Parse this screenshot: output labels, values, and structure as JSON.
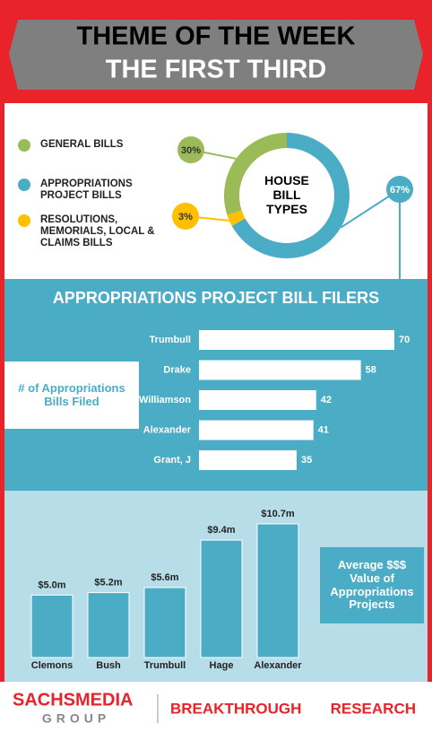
{
  "header": {
    "title": "THEME OF THE WEEK",
    "subtitle": "THE FIRST THIRD"
  },
  "chart_data": [
    {
      "type": "pie",
      "title": "HOUSE BILL TYPES",
      "categories": [
        "GENERAL BILLS",
        "APPROPRIATIONS PROJECT BILLS",
        "RESOLUTIONS, MEMORIALS, LOCAL & CLAIMS BILLS"
      ],
      "values": [
        30,
        67,
        3
      ],
      "value_labels": [
        "30%",
        "67%",
        "3%"
      ],
      "colors": [
        "#9bbb59",
        "#4bacc6",
        "#ffc000"
      ]
    },
    {
      "type": "hbar",
      "title": "APPROPRIATIONS PROJECT BILL FILERS",
      "value_axis_label": "# of Appropriations Bills Filed",
      "categories": [
        "Trumbull",
        "Drake",
        "Williamson",
        "Alexander",
        "Grant, J"
      ],
      "values": [
        70,
        58,
        42,
        41,
        35
      ],
      "color": "#ffffff"
    },
    {
      "type": "bar",
      "value_axis_label": "Average $$$ Value of Appropriations Projects",
      "categories": [
        "Clemons",
        "Bush",
        "Trumbull",
        "Hage",
        "Alexander"
      ],
      "values": [
        5.0,
        5.2,
        5.6,
        9.4,
        10.7
      ],
      "value_labels": [
        "$5.0m",
        "$5.2m",
        "$5.6m",
        "$9.4m",
        "$10.7m"
      ],
      "color": "#4bacc6"
    }
  ],
  "footer": {
    "brand": "SACHSMEDIA",
    "brand_sub": "GROUP",
    "tagline": "BREAKTHROUGH",
    "tagline_bold": "RESEARCH"
  }
}
